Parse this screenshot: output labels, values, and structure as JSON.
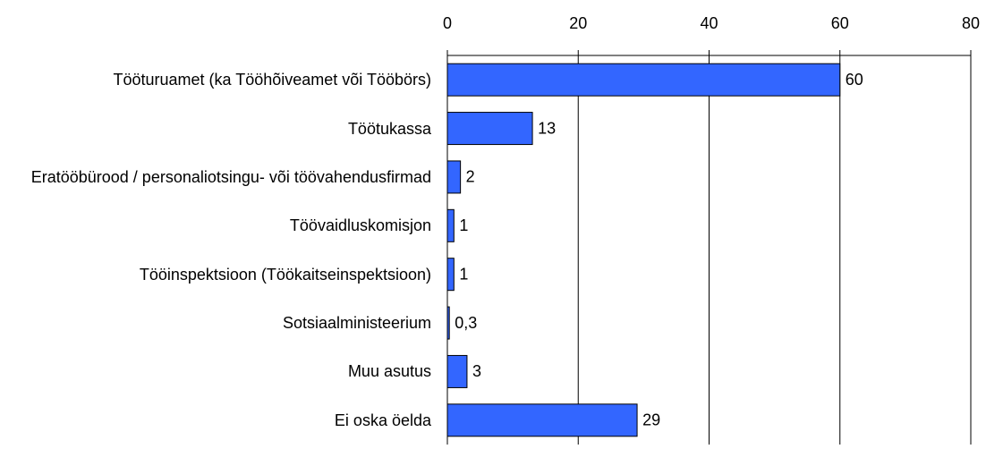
{
  "chart_data": {
    "type": "bar",
    "orientation": "horizontal",
    "categories": [
      "Tööturuamet (ka Tööhõiveamet või Tööbörs)",
      "Töötukassa",
      "Eratööbürood / personaliotsingu- või töövahendusfirmad",
      "Töövaidluskomisjon",
      "Tööinspektsioon (Töökaitseinspektsioon)",
      "Sotsiaalministeerium",
      "Muu asutus",
      "Ei oska öelda"
    ],
    "values": [
      60,
      13,
      2,
      1,
      1,
      0.3,
      3,
      29
    ],
    "value_labels": [
      "60",
      "13",
      "2",
      "1",
      "1",
      "0,3",
      "3",
      "29"
    ],
    "color": "#3366ff",
    "xlim": [
      0,
      80
    ],
    "xticks": [
      0,
      20,
      40,
      60,
      80
    ],
    "grid": true
  }
}
